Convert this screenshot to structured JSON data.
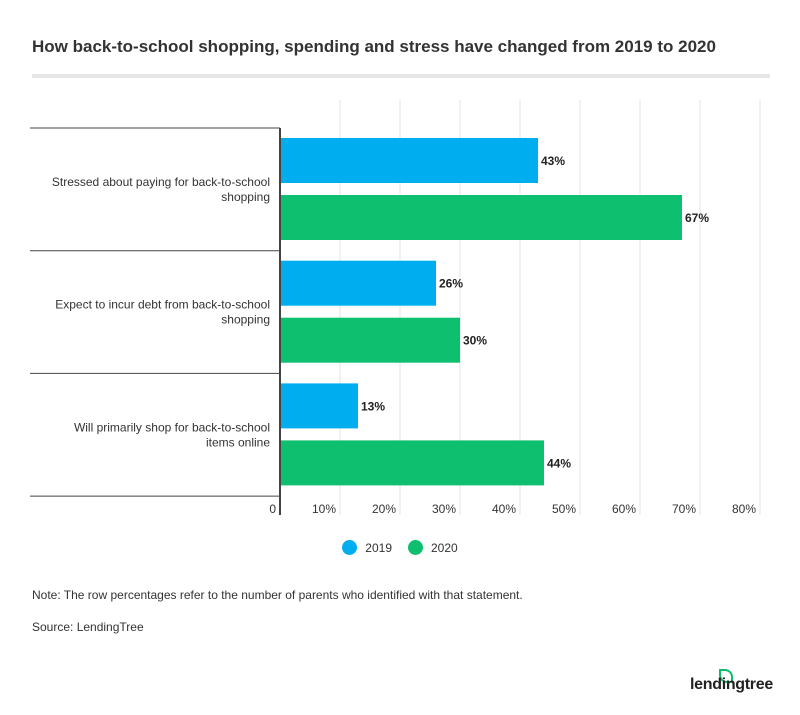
{
  "title": "How back-to-school shopping, spending and stress have changed from 2019 to 2020",
  "note": "Note: The row percentages refer to the number of parents who identified with that statement.",
  "source": "Source: LendingTree",
  "logo_text": "lendingtree",
  "chart_data": {
    "type": "bar",
    "orientation": "horizontal",
    "categories": [
      [
        "Stressed about paying for back-to-school",
        "shopping"
      ],
      [
        "Expect to incur debt from back-to-school",
        "shopping"
      ],
      [
        "Will primarily shop for back-to-school",
        "items online"
      ]
    ],
    "series": [
      {
        "name": "2019",
        "color": "#00aeef",
        "values": [
          43,
          26,
          13
        ]
      },
      {
        "name": "2020",
        "color": "#0ebf6f",
        "values": [
          67,
          30,
          44
        ]
      }
    ],
    "xlim": [
      0,
      80
    ],
    "ticks": [
      "0",
      "10%",
      "20%",
      "30%",
      "40%",
      "50%",
      "60%",
      "70%",
      "80%"
    ],
    "grid": true,
    "legend": "bottom"
  }
}
